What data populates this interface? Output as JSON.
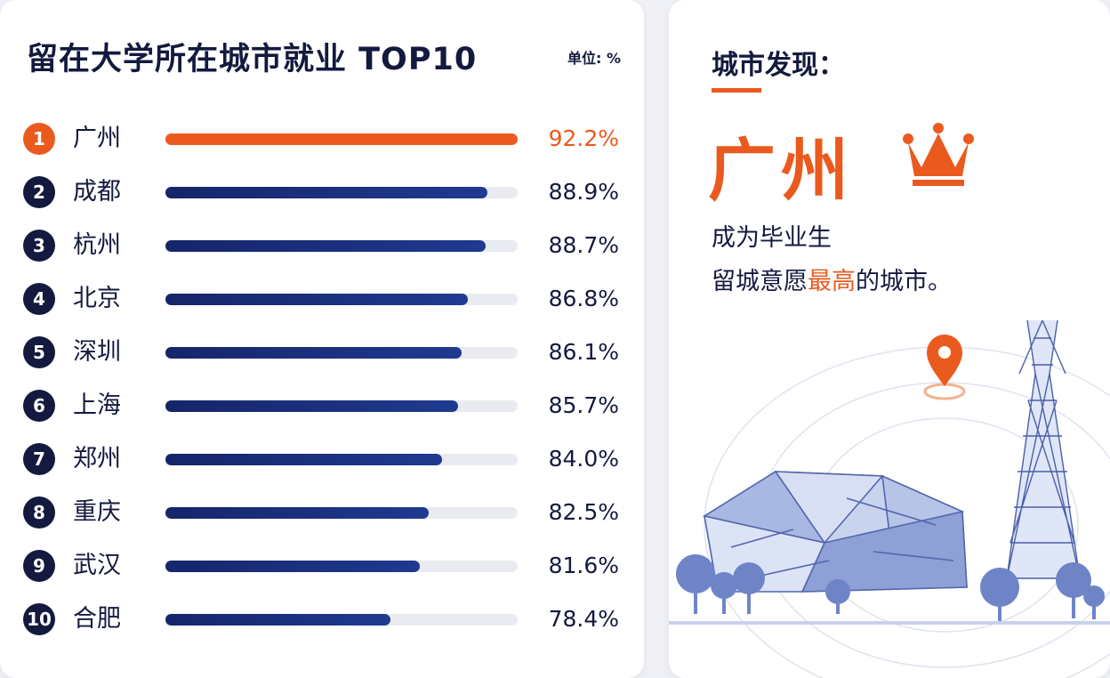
{
  "chart_data": {
    "type": "bar",
    "title": "留在大学所在城市就业 TOP10",
    "unit_label": "单位: %",
    "ranks": [
      "1",
      "2",
      "3",
      "4",
      "5",
      "6",
      "7",
      "8",
      "9",
      "10"
    ],
    "categories": [
      "广州",
      "成都",
      "杭州",
      "北京",
      "深圳",
      "上海",
      "郑州",
      "重庆",
      "武汉",
      "合肥"
    ],
    "values": [
      92.2,
      88.9,
      88.7,
      86.8,
      86.1,
      85.7,
      84.0,
      82.5,
      81.6,
      78.4
    ],
    "value_labels": [
      "92.2%",
      "88.9%",
      "88.7%",
      "86.8%",
      "86.1%",
      "85.7%",
      "84.0%",
      "82.5%",
      "81.6%",
      "78.4%"
    ],
    "xlim": [
      0,
      92.2
    ],
    "highlight_color": "#ea5a1e",
    "bar_color": "#1a2d78"
  },
  "panel": {
    "heading": "城市发现：",
    "city": "广州",
    "line1": "成为毕业生",
    "line2_before": "留城意愿",
    "line2_highlight": "最高",
    "line2_after": "的城市。",
    "icons": [
      "crown-icon",
      "location-pin-icon"
    ],
    "accent_color": "#ea5a1e"
  }
}
